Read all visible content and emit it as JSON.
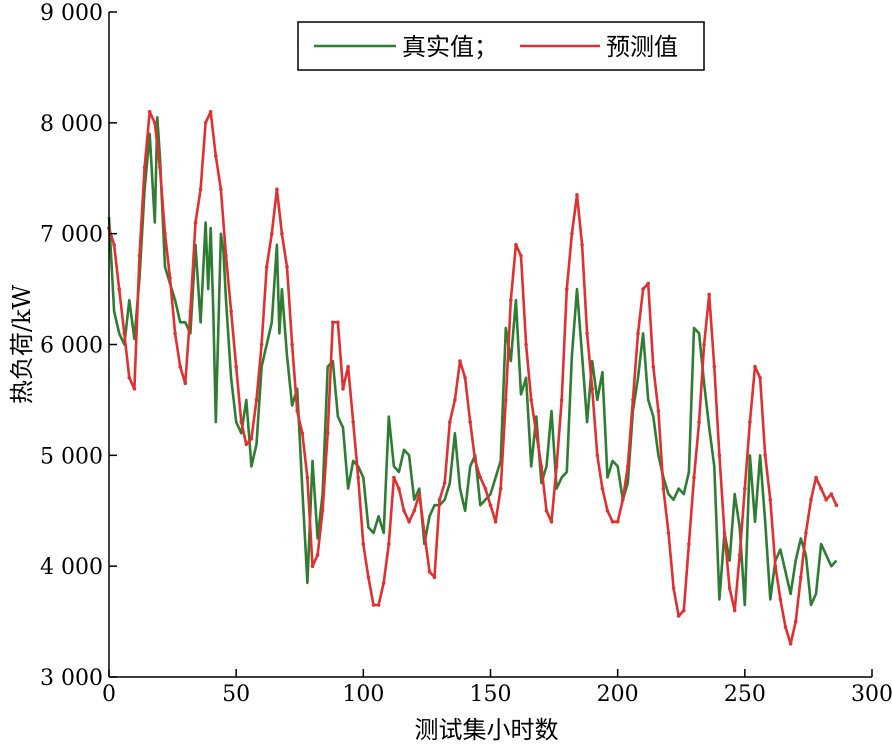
{
  "chart_data": {
    "type": "line",
    "xlabel": "测试集小时数",
    "ylabel": "热负荷/kW",
    "xlim": [
      0,
      300
    ],
    "ylim": [
      3000,
      9000
    ],
    "x_ticks": [
      0,
      50,
      100,
      150,
      200,
      250,
      300
    ],
    "x_tick_labels": [
      "0",
      "50",
      "100",
      "150",
      "200",
      "250",
      "300"
    ],
    "y_ticks": [
      3000,
      4000,
      5000,
      6000,
      7000,
      8000,
      9000
    ],
    "y_tick_labels": [
      "3 000",
      "4 000",
      "5 000",
      "6 000",
      "7 000",
      "8 000",
      "9 000"
    ],
    "grid": false,
    "legend_position": "top-right",
    "series": [
      {
        "name": "真实值；",
        "color": "#2e7d32",
        "x": [
          0,
          2,
          4,
          6,
          8,
          10,
          12,
          14,
          16,
          18,
          19,
          20,
          22,
          24,
          26,
          28,
          30,
          32,
          34,
          36,
          38,
          39,
          40,
          41,
          42,
          44,
          45,
          46,
          48,
          50,
          52,
          54,
          55,
          56,
          58,
          60,
          62,
          64,
          66,
          67,
          68,
          70,
          72,
          74,
          76,
          78,
          80,
          82,
          84,
          86,
          88,
          90,
          92,
          94,
          96,
          98,
          100,
          102,
          104,
          106,
          108,
          110,
          112,
          114,
          116,
          118,
          120,
          122,
          124,
          126,
          128,
          130,
          132,
          134,
          136,
          138,
          140,
          142,
          144,
          146,
          148,
          150,
          152,
          154,
          156,
          158,
          160,
          162,
          164,
          166,
          168,
          170,
          172,
          174,
          176,
          178,
          180,
          182,
          184,
          186,
          188,
          190,
          192,
          194,
          196,
          198,
          200,
          202,
          204,
          206,
          208,
          210,
          212,
          214,
          216,
          218,
          220,
          222,
          224,
          226,
          228,
          230,
          232,
          234,
          236,
          238,
          240,
          242,
          244,
          246,
          248,
          250,
          252,
          254,
          256,
          258,
          260,
          262,
          264,
          266,
          268,
          270,
          272,
          274,
          276,
          278,
          280,
          282,
          284,
          286
        ],
        "values": [
          7150,
          6300,
          6100,
          6000,
          6400,
          6050,
          6600,
          7400,
          7900,
          7100,
          8050,
          7700,
          6700,
          6550,
          6400,
          6200,
          6200,
          6100,
          6900,
          6200,
          7100,
          6500,
          7050,
          6300,
          5300,
          7000,
          6850,
          6400,
          5700,
          5300,
          5200,
          5500,
          5200,
          4900,
          5100,
          5800,
          6000,
          6200,
          6900,
          6100,
          6500,
          5900,
          5450,
          5600,
          4700,
          3850,
          4950,
          4250,
          4650,
          5800,
          5850,
          5350,
          5250,
          4700,
          4950,
          4900,
          4800,
          4350,
          4300,
          4450,
          4300,
          5350,
          4900,
          4850,
          5050,
          5000,
          4600,
          4700,
          4200,
          4450,
          4550,
          4550,
          4600,
          4750,
          5200,
          4700,
          4500,
          4900,
          5000,
          4550,
          4600,
          4650,
          4800,
          4950,
          6150,
          5850,
          6400,
          5550,
          5700,
          4900,
          5350,
          4750,
          4900,
          5400,
          4700,
          4800,
          4850,
          5900,
          6500,
          5900,
          5300,
          5850,
          5500,
          5750,
          4800,
          4950,
          4900,
          4600,
          4750,
          5400,
          5700,
          6100,
          5500,
          5350,
          5000,
          4800,
          4650,
          4600,
          4700,
          4650,
          4850,
          6150,
          6100,
          5650,
          5250,
          4900,
          3700,
          4300,
          4050,
          4650,
          4350,
          3650,
          5000,
          4400,
          5000,
          4400,
          3700,
          4050,
          4150,
          3950,
          3750,
          4050,
          4250,
          4100,
          3650,
          3750,
          4200,
          4100,
          4000,
          4050
        ]
      },
      {
        "name": "预测值",
        "color": "#e03030",
        "x": [
          0,
          2,
          4,
          6,
          8,
          10,
          12,
          14,
          16,
          18,
          20,
          22,
          24,
          26,
          28,
          30,
          32,
          34,
          36,
          38,
          40,
          42,
          44,
          46,
          48,
          50,
          52,
          54,
          56,
          58,
          60,
          62,
          64,
          66,
          68,
          70,
          72,
          74,
          76,
          78,
          80,
          82,
          84,
          86,
          88,
          90,
          92,
          94,
          96,
          98,
          100,
          102,
          104,
          106,
          108,
          110,
          112,
          114,
          116,
          118,
          120,
          122,
          124,
          126,
          128,
          130,
          132,
          134,
          136,
          138,
          140,
          142,
          144,
          146,
          148,
          150,
          152,
          154,
          156,
          158,
          160,
          162,
          164,
          166,
          168,
          170,
          172,
          174,
          176,
          178,
          180,
          182,
          184,
          186,
          188,
          190,
          192,
          194,
          196,
          198,
          200,
          202,
          204,
          206,
          208,
          210,
          212,
          214,
          216,
          218,
          220,
          222,
          224,
          226,
          228,
          230,
          232,
          234,
          236,
          238,
          240,
          242,
          244,
          246,
          248,
          250,
          252,
          254,
          256,
          258,
          260,
          262,
          264,
          266,
          268,
          270,
          272,
          274,
          276,
          278,
          280,
          282,
          284,
          286
        ],
        "values": [
          7050,
          6900,
          6500,
          6100,
          5700,
          5600,
          6800,
          7600,
          8100,
          8000,
          7600,
          7000,
          6600,
          6100,
          5800,
          5650,
          6300,
          7100,
          7400,
          8000,
          8100,
          7700,
          7400,
          6800,
          6300,
          5800,
          5300,
          5100,
          5150,
          5500,
          6000,
          6700,
          7000,
          7400,
          7000,
          6700,
          6000,
          5400,
          5200,
          4800,
          4000,
          4100,
          4500,
          5200,
          6200,
          6200,
          5600,
          5800,
          5300,
          4800,
          4200,
          3900,
          3650,
          3650,
          3850,
          4200,
          4800,
          4700,
          4500,
          4400,
          4500,
          4650,
          4300,
          3950,
          3900,
          4600,
          4750,
          5300,
          5500,
          5850,
          5700,
          5300,
          4950,
          4800,
          4700,
          4550,
          4400,
          4700,
          5500,
          6400,
          6900,
          6800,
          6000,
          5500,
          5200,
          4900,
          4500,
          4400,
          4900,
          5500,
          6500,
          7000,
          7350,
          6900,
          6100,
          5600,
          5000,
          4700,
          4500,
          4400,
          4400,
          4600,
          4900,
          5500,
          6100,
          6500,
          6550,
          5800,
          5400,
          4700,
          4300,
          3800,
          3550,
          3600,
          4200,
          4800,
          5300,
          6000,
          6450,
          5800,
          5000,
          4300,
          3800,
          3600,
          4100,
          4700,
          5300,
          5800,
          5700,
          5000,
          4600,
          4000,
          3700,
          3450,
          3300,
          3500,
          3900,
          4300,
          4600,
          4800,
          4700,
          4600,
          4650,
          4550
        ]
      }
    ]
  }
}
